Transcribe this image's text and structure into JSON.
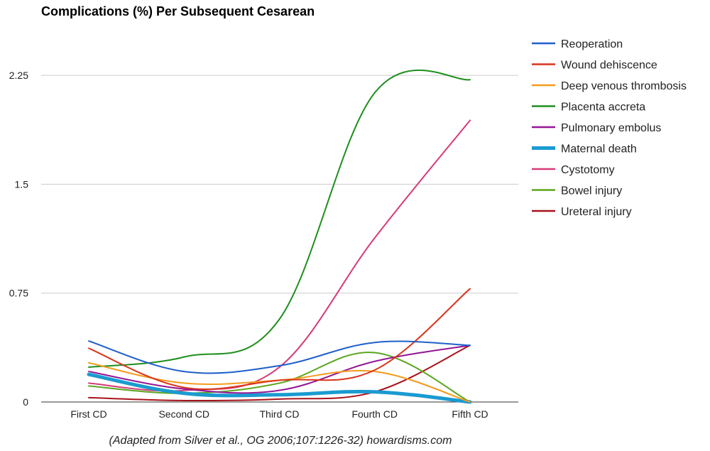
{
  "chart_data": {
    "type": "line",
    "title": "Complications (%) Per Subsequent Cesarean",
    "xlabel": "",
    "ylabel": "",
    "categories": [
      "First CD",
      "Second CD",
      "Third CD",
      "Fourth CD",
      "Fifth CD"
    ],
    "ylim": [
      0,
      2.5
    ],
    "yticks": [
      0,
      0.75,
      1.5,
      2.25
    ],
    "ytick_labels": [
      "0",
      "0.75",
      "1.5",
      "2.25"
    ],
    "grid": true,
    "legend_position": "right",
    "series": [
      {
        "name": "Reoperation",
        "color": "#1f5fc9",
        "width": 2,
        "values": [
          0.42,
          0.21,
          0.25,
          0.41,
          0.39
        ]
      },
      {
        "name": "Wound dehiscence",
        "color": "#d9341b",
        "width": 2,
        "values": [
          0.37,
          0.1,
          0.15,
          0.22,
          0.78
        ]
      },
      {
        "name": "Deep venous thrombosis",
        "color": "#f59a1c",
        "width": 2,
        "values": [
          0.27,
          0.13,
          0.15,
          0.21,
          0.0
        ]
      },
      {
        "name": "Placenta accreta",
        "color": "#1e8f1e",
        "width": 2,
        "values": [
          0.24,
          0.31,
          0.57,
          2.13,
          2.22
        ]
      },
      {
        "name": "Pulmonary embolus",
        "color": "#941694",
        "width": 2,
        "values": [
          0.21,
          0.09,
          0.08,
          0.28,
          0.39
        ]
      },
      {
        "name": "Maternal death",
        "color": "#1a9bd0",
        "width": 5,
        "values": [
          0.19,
          0.06,
          0.05,
          0.07,
          0.0
        ]
      },
      {
        "name": "Cystotomy",
        "color": "#d63a78",
        "width": 2,
        "values": [
          0.13,
          0.08,
          0.24,
          1.13,
          1.94
        ]
      },
      {
        "name": "Bowel injury",
        "color": "#5aa61e",
        "width": 2,
        "values": [
          0.11,
          0.06,
          0.13,
          0.34,
          0.0
        ]
      },
      {
        "name": "Ureteral injury",
        "color": "#a8121a",
        "width": 2,
        "values": [
          0.03,
          0.01,
          0.02,
          0.07,
          0.39
        ]
      }
    ],
    "footer": "(Adapted from Silver et al., OG 2006;107:1226-32) howardisms.com"
  }
}
